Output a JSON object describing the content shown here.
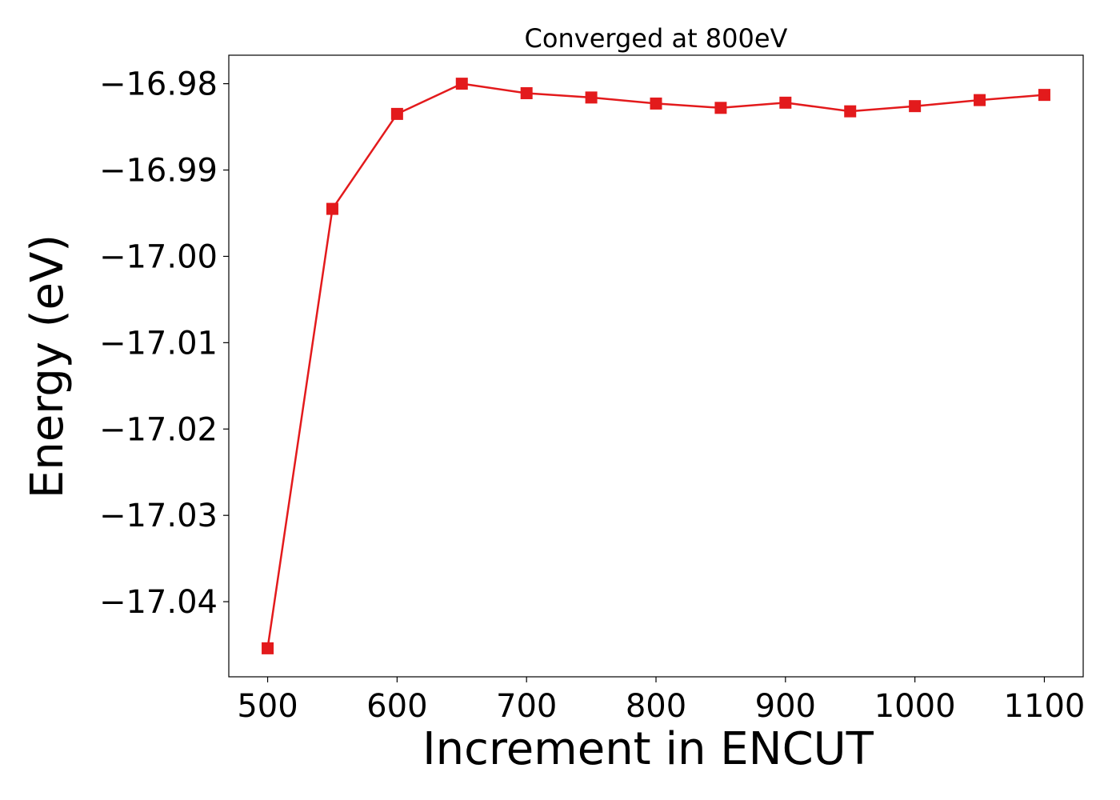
{
  "chart_data": {
    "type": "line",
    "title": "Converged at 800eV",
    "xlabel": "Increment in ENCUT",
    "ylabel": "Energy (eV)",
    "x": [
      500,
      550,
      600,
      650,
      700,
      750,
      800,
      850,
      900,
      950,
      1000,
      1050,
      1100
    ],
    "series": [
      {
        "values": [
          -17.0454,
          -16.9945,
          -16.9835,
          -16.98,
          -16.9811,
          -16.9816,
          -16.9823,
          -16.9828,
          -16.9822,
          -16.9832,
          -16.9826,
          -16.9819,
          -16.9813
        ],
        "color": "#e31a1c",
        "marker": "square"
      }
    ],
    "xlim": [
      470,
      1130
    ],
    "ylim": [
      -17.0487,
      -16.9767
    ],
    "xticks": [
      500,
      600,
      700,
      800,
      900,
      1000,
      1100
    ],
    "xtick_labels": [
      "500",
      "600",
      "700",
      "800",
      "900",
      "1000",
      "1100"
    ],
    "yticks": [
      -16.98,
      -16.99,
      -17.0,
      -17.01,
      -17.02,
      -17.03,
      -17.04
    ],
    "ytick_labels": [
      "−16.98",
      "−16.99",
      "−17.00",
      "−17.01",
      "−17.02",
      "−17.03",
      "−17.04"
    ],
    "grid": false,
    "legend": "none"
  }
}
